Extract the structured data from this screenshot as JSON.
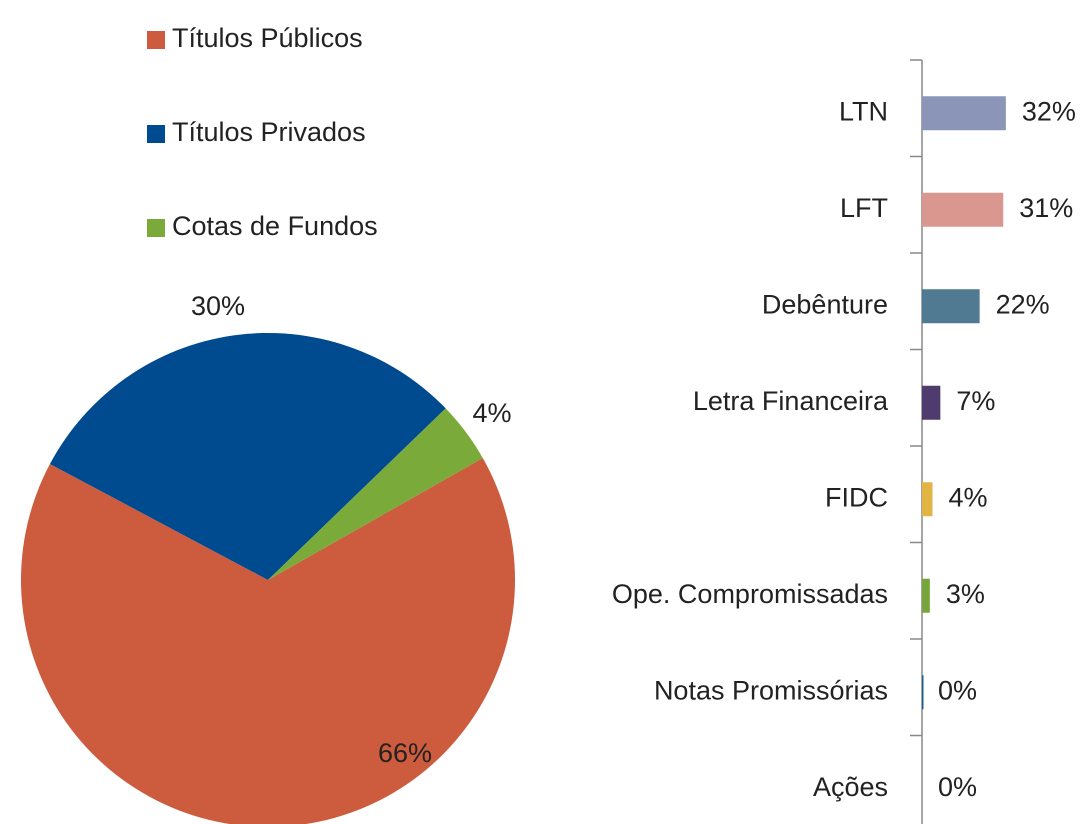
{
  "chart_data": [
    {
      "type": "pie",
      "categories": [
        "Títulos Públicos",
        "Títulos Privados",
        "Cotas de Fundos"
      ],
      "values": [
        66,
        30,
        4
      ],
      "value_labels": [
        "66%",
        "30%",
        "4%"
      ],
      "colors": [
        "#cd5b3d",
        "#004a8f",
        "#7aab3a"
      ],
      "legend": "top-left"
    },
    {
      "type": "bar",
      "orientation": "horizontal",
      "categories": [
        "LTN",
        "LFT",
        "Debênture",
        "Letra Financeira",
        "FIDC",
        "Ope. Compromissadas",
        "Notas Promissórias",
        "Ações"
      ],
      "values": [
        32,
        31,
        22,
        7,
        4,
        3,
        0,
        0
      ],
      "value_labels": [
        "32%",
        "31%",
        "22%",
        "7%",
        "4%",
        "3%",
        "0%",
        "0%"
      ],
      "colors": [
        "#8a95b8",
        "#d9978f",
        "#4f7a91",
        "#4f3b6e",
        "#e2b443",
        "#77a53b",
        "#1f5f8f",
        "#999999"
      ]
    }
  ]
}
